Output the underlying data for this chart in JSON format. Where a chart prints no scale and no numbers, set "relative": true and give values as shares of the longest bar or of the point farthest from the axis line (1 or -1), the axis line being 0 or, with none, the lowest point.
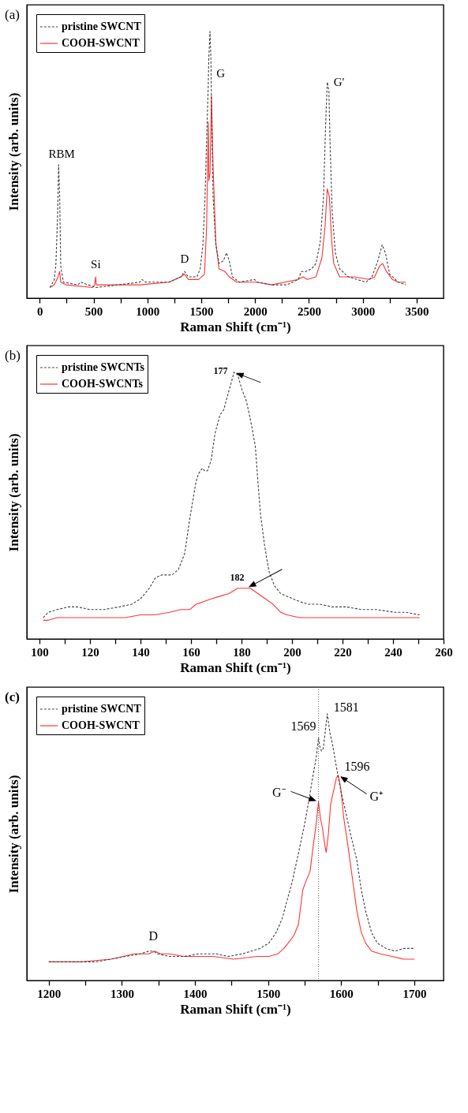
{
  "chart_data": [
    {
      "type": "line",
      "title": "(a)",
      "xlabel": "Raman Shift (cm⁻¹)",
      "ylabel": "Intensity (arb. units)",
      "relative": true,
      "legend": "top left",
      "xlim": [
        -120,
        3750
      ],
      "xticks": [
        0,
        {
          "value": 250,
          "label": null
        },
        500,
        {
          "value": 750,
          "label": null
        },
        1000,
        {
          "value": 1250,
          "label": null
        },
        1500,
        {
          "value": 1750,
          "label": null
        },
        2000,
        {
          "value": 2250,
          "label": null
        },
        2500,
        {
          "value": 2750,
          "label": null
        },
        3000,
        {
          "value": 3250,
          "label": null
        },
        3500
      ],
      "series": [
        {
          "name": "pristine SWCNT",
          "color": "#404040",
          "line_style": "dashed",
          "x": [
            95,
            135,
            150,
            165,
            175,
            185,
            195,
            220,
            355,
            380,
            520,
            735,
            930,
            950,
            985,
            1065,
            1200,
            1310,
            1345,
            1380,
            1420,
            1460,
            1490,
            1515,
            1535,
            1550,
            1565,
            1570,
            1581,
            1590,
            1595,
            1610,
            1635,
            1665,
            1705,
            1735,
            1760,
            1790,
            1855,
            1995,
            2020,
            2155,
            2295,
            2400,
            2430,
            2470,
            2525,
            2565,
            2605,
            2635,
            2655,
            2670,
            2685,
            2695,
            2715,
            2745,
            2785,
            2865,
            3030,
            3085,
            3140,
            3180,
            3210,
            3250,
            3330,
            3400
          ],
          "values": [
            0.04,
            0.07,
            0.13,
            0.3,
            0.5,
            0.38,
            0.12,
            0.06,
            0.05,
            0.06,
            0.04,
            0.05,
            0.06,
            0.07,
            0.06,
            0.06,
            0.06,
            0.08,
            0.1,
            0.08,
            0.08,
            0.08,
            0.11,
            0.2,
            0.38,
            0.6,
            0.8,
            0.9,
            1.0,
            0.89,
            0.71,
            0.38,
            0.2,
            0.13,
            0.14,
            0.17,
            0.14,
            0.08,
            0.06,
            0.07,
            0.06,
            0.05,
            0.05,
            0.07,
            0.1,
            0.1,
            0.11,
            0.13,
            0.21,
            0.38,
            0.65,
            0.81,
            0.78,
            0.6,
            0.33,
            0.17,
            0.11,
            0.08,
            0.06,
            0.08,
            0.14,
            0.2,
            0.17,
            0.09,
            0.06,
            0.05
          ]
        },
        {
          "name": "COOH-SWCNT",
          "color": "#ff3333",
          "line_style": "solid",
          "x": [
            95,
            135,
            170,
            185,
            195,
            245,
            490,
            510,
            520,
            525,
            655,
            930,
            1200,
            1310,
            1345,
            1380,
            1475,
            1530,
            1550,
            1565,
            1570,
            1581,
            1590,
            1595,
            1610,
            1635,
            1665,
            1720,
            1740,
            1760,
            1830,
            2020,
            2155,
            2400,
            2445,
            2485,
            2565,
            2620,
            2650,
            2670,
            2690,
            2710,
            2730,
            2785,
            2920,
            3060,
            3110,
            3155,
            3185,
            3220,
            3275,
            3330,
            3400
          ],
          "values": [
            0.04,
            0.05,
            0.08,
            0.1,
            0.06,
            0.05,
            0.04,
            0.05,
            0.08,
            0.05,
            0.05,
            0.05,
            0.06,
            0.08,
            0.09,
            0.07,
            0.07,
            0.09,
            0.27,
            0.66,
            0.44,
            0.47,
            0.65,
            0.76,
            0.49,
            0.21,
            0.11,
            0.1,
            0.09,
            0.08,
            0.06,
            0.06,
            0.05,
            0.07,
            0.08,
            0.07,
            0.08,
            0.15,
            0.27,
            0.41,
            0.38,
            0.22,
            0.13,
            0.08,
            0.08,
            0.07,
            0.08,
            0.12,
            0.13,
            0.1,
            0.07,
            0.06,
            0.06
          ]
        }
      ],
      "annotations": [
        {
          "text": "RBM",
          "x": 175,
          "y": 0.5
        },
        {
          "text": "Si",
          "x": 520,
          "y": 0.08
        },
        {
          "text": "D",
          "x": 1345,
          "y": 0.1
        },
        {
          "text": "G",
          "x": 1590,
          "y": 0.89
        },
        {
          "text": "G'",
          "x": 2670,
          "y": 0.81
        }
      ]
    },
    {
      "type": "line",
      "title": "(b)",
      "xlabel": "Raman Shift (cm⁻¹)",
      "ylabel": "Intensity (arb. units)",
      "relative": true,
      "legend": "top left",
      "xlim": [
        95,
        260
      ],
      "xticks": [
        100,
        {
          "value": 110,
          "label": null
        },
        120,
        {
          "value": 130,
          "label": null
        },
        140,
        {
          "value": 150,
          "label": null
        },
        160,
        {
          "value": 170,
          "label": null
        },
        180,
        {
          "value": 190,
          "label": null
        },
        200,
        {
          "value": 210,
          "label": null
        },
        220,
        {
          "value": 230,
          "label": null
        },
        240,
        {
          "value": 250,
          "label": null
        },
        260
      ],
      "series": [
        {
          "name": "pristine SWCNTs",
          "color": "#404040",
          "line_style": "dashed",
          "x": [
            101.5,
            103.5,
            107,
            111.5,
            115,
            120,
            125.5,
            131.5,
            136.5,
            140,
            143.5,
            146,
            148.5,
            150.5,
            152.5,
            155,
            157.5,
            159.5,
            162,
            163,
            164.5,
            165.5,
            166.5,
            168,
            169.5,
            171.5,
            173,
            175,
            176.5,
            177,
            178.5,
            180,
            182,
            184,
            185.5,
            186.5,
            187.5,
            189,
            190,
            191,
            193,
            195.5,
            198,
            200.5,
            203,
            206.5,
            211,
            216,
            221.5,
            227.5,
            233.5,
            240.5,
            245,
            250.5
          ],
          "values": [
            0.08,
            0.1,
            0.11,
            0.12,
            0.12,
            0.11,
            0.11,
            0.12,
            0.13,
            0.15,
            0.19,
            0.23,
            0.24,
            0.24,
            0.24,
            0.26,
            0.32,
            0.45,
            0.59,
            0.62,
            0.64,
            0.63,
            0.63,
            0.67,
            0.77,
            0.84,
            0.86,
            0.93,
            0.98,
            1.0,
            0.99,
            0.94,
            0.89,
            0.8,
            0.72,
            0.59,
            0.47,
            0.36,
            0.3,
            0.25,
            0.2,
            0.17,
            0.16,
            0.15,
            0.14,
            0.13,
            0.13,
            0.12,
            0.12,
            0.11,
            0.11,
            0.1,
            0.1,
            0.09
          ]
        },
        {
          "name": "COOH-SWCNTs",
          "color": "#ff3333",
          "line_style": "solid",
          "x": [
            101.5,
            103.5,
            107,
            111.5,
            116.5,
            122,
            128,
            134,
            140,
            145.5,
            151.5,
            156,
            159.5,
            162,
            165,
            168,
            171.5,
            175,
            178.5,
            181.5,
            183.5,
            186.5,
            189.5,
            192.5,
            195.5,
            198,
            203,
            210,
            221.5,
            233.5,
            245,
            250.5
          ],
          "values": [
            0.07,
            0.07,
            0.08,
            0.08,
            0.08,
            0.08,
            0.08,
            0.08,
            0.09,
            0.09,
            0.1,
            0.11,
            0.11,
            0.13,
            0.14,
            0.15,
            0.16,
            0.17,
            0.19,
            0.19,
            0.19,
            0.17,
            0.15,
            0.13,
            0.1,
            0.09,
            0.08,
            0.08,
            0.08,
            0.08,
            0.08,
            0.08
          ]
        }
      ],
      "annotations": [
        {
          "text": "177",
          "x": 177,
          "y": 1.0
        },
        {
          "text": "182",
          "x": 182,
          "y": 0.19
        }
      ]
    },
    {
      "type": "line",
      "title": "(c)",
      "xlabel": "Raman Shift (cm⁻¹)",
      "ylabel": "Intensity (arb. units)",
      "relative": true,
      "legend": "top left",
      "xlim": [
        1170,
        1740
      ],
      "xticks": [
        1200,
        {
          "value": 1250,
          "label": null
        },
        1300,
        {
          "value": 1350,
          "label": null
        },
        1400,
        {
          "value": 1450,
          "label": null
        },
        1500,
        {
          "value": 1550,
          "label": null
        },
        1600,
        {
          "value": 1650,
          "label": null
        },
        1700
      ],
      "series": [
        {
          "name": "pristine SWCNT",
          "color": "#404040",
          "line_style": "dashed",
          "x": [
            1200,
            1225,
            1245,
            1265,
            1285,
            1305,
            1325,
            1337,
            1343,
            1349,
            1365,
            1385,
            1405,
            1419,
            1429,
            1445,
            1465,
            1477,
            1489,
            1501,
            1511,
            1519,
            1525,
            1533,
            1541,
            1549.5,
            1555.5,
            1561.5,
            1565.5,
            1569,
            1570.5,
            1573,
            1575.5,
            1578.5,
            1581,
            1584.5,
            1588.5,
            1593.5,
            1599.5,
            1605.5,
            1613.5,
            1621.5,
            1627.5,
            1633.5,
            1641.5,
            1649.5,
            1661.5,
            1673.5,
            1685.5,
            1700
          ],
          "values": [
            0.07,
            0.07,
            0.07,
            0.07,
            0.08,
            0.09,
            0.1,
            0.11,
            0.11,
            0.1,
            0.09,
            0.09,
            0.1,
            0.1,
            0.1,
            0.09,
            0.1,
            0.11,
            0.12,
            0.14,
            0.18,
            0.23,
            0.29,
            0.37,
            0.47,
            0.58,
            0.67,
            0.77,
            0.83,
            0.91,
            0.88,
            0.86,
            0.87,
            0.94,
            1.0,
            0.93,
            0.88,
            0.8,
            0.71,
            0.64,
            0.54,
            0.45,
            0.34,
            0.26,
            0.18,
            0.14,
            0.12,
            0.11,
            0.12,
            0.12
          ]
        },
        {
          "name": "COOH-SWCNT",
          "color": "#ff3333",
          "line_style": "solid",
          "x": [
            1200,
            1245,
            1285,
            1317,
            1337,
            1345,
            1353,
            1365,
            1385,
            1425,
            1453,
            1485,
            1501,
            1513.5,
            1521.5,
            1527.5,
            1535.5,
            1541.5,
            1547.5,
            1551.5,
            1557.5,
            1561.5,
            1565.5,
            1569,
            1571.5,
            1574.5,
            1577.5,
            1579.5,
            1582.5,
            1585.5,
            1589.5,
            1593.5,
            1596,
            1599.5,
            1603.5,
            1609.5,
            1615.5,
            1621.5,
            1627.5,
            1633.5,
            1641.5,
            1653.5,
            1669.5,
            1685.5,
            1700
          ],
          "values": [
            0.07,
            0.07,
            0.08,
            0.1,
            0.1,
            0.11,
            0.1,
            0.1,
            0.09,
            0.09,
            0.08,
            0.09,
            0.09,
            0.1,
            0.12,
            0.14,
            0.17,
            0.21,
            0.34,
            0.37,
            0.41,
            0.5,
            0.58,
            0.67,
            0.61,
            0.57,
            0.51,
            0.48,
            0.55,
            0.66,
            0.71,
            0.76,
            0.77,
            0.72,
            0.61,
            0.5,
            0.38,
            0.26,
            0.18,
            0.14,
            0.11,
            0.1,
            0.09,
            0.08,
            0.08
          ]
        }
      ],
      "ref_lines": [
        {
          "axis": "x",
          "value": 1569,
          "color": "#555555",
          "line_style": "dotted"
        }
      ],
      "annotations": [
        {
          "text": "D",
          "x": 1343,
          "y": 0.11
        },
        {
          "text": "1569",
          "x": 1569,
          "y": 0.91
        },
        {
          "text": "1581",
          "x": 1581,
          "y": 1.0
        },
        {
          "text": "1596",
          "x": 1596,
          "y": 0.77
        },
        {
          "text": "G⁻",
          "x": 1569,
          "y": 0.67
        },
        {
          "text": "G⁺",
          "x": 1596,
          "y": 0.77
        }
      ]
    }
  ]
}
